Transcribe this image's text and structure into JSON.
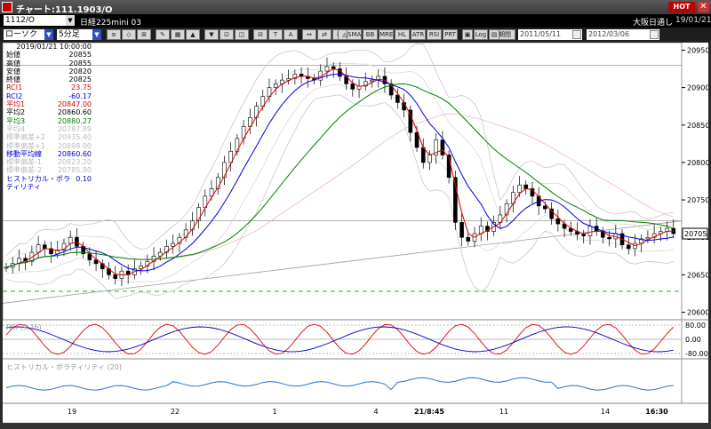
{
  "window": {
    "title": "チャート:111.1903/O",
    "hot_label": "HOT",
    "close_glyph": "✕"
  },
  "symbol_bar": {
    "code": "1112/O",
    "name": "日経225mini 03",
    "market": "大阪日通し",
    "date": "19/01/21"
  },
  "controls": {
    "chart_type": "ローソク",
    "interval": "5分足",
    "buttons": [
      "≡",
      "◇",
      "⊞",
      "✎",
      "▦",
      "▲",
      "▼",
      "⊡",
      "◫",
      "⊟",
      "T",
      "A",
      "↔",
      "⇄",
      "⊠",
      "◨",
      "◧",
      "◩",
      "▤",
      "◭",
      "▨",
      "▩",
      "▥",
      "◬"
    ],
    "indicator_buttons": [
      "SMA",
      "BB",
      "MRE",
      "HL",
      "ATR",
      "RSI",
      "PRT"
    ],
    "extra_buttons": [
      "▣",
      "Log",
      "▤"
    ],
    "period_label": "期間",
    "date_from": "2011/05/11",
    "date_to": "2012/03/06"
  },
  "legend": {
    "datetime": "2019/01/21 10:00:00",
    "rows": [
      {
        "label": "始値",
        "value": "20855",
        "style": ""
      },
      {
        "label": "高値",
        "value": "20855",
        "style": ""
      },
      {
        "label": "安値",
        "value": "20820",
        "style": ""
      },
      {
        "label": "終値",
        "value": "20825",
        "style": ""
      },
      {
        "label": "RCI1",
        "value": "23.75",
        "style": "red"
      },
      {
        "label": "RCI2",
        "value": "-60.17",
        "style": "blue"
      },
      {
        "label": "平均1",
        "value": "20847.00",
        "style": "red"
      },
      {
        "label": "平均2",
        "value": "20860.60",
        "style": ""
      },
      {
        "label": "平均3",
        "value": "20880.27",
        "style": "green"
      },
      {
        "label": "平均4",
        "value": "20787.89",
        "style": "faint"
      },
      {
        "label": "標準偏差+2",
        "value": "20935.40",
        "style": "faint"
      },
      {
        "label": "標準偏差+1",
        "value": "20898.00",
        "style": "faint"
      },
      {
        "label": "移動平均線",
        "value": "20860.60",
        "style": "blue"
      },
      {
        "label": "標準偏差-1",
        "value": "20823.20",
        "style": "faint"
      },
      {
        "label": "標準偏差-2",
        "value": "20785.80",
        "style": "faint"
      },
      {
        "label": "ヒストリカル・ボラティリティ",
        "value": "0.10",
        "style": "blue"
      }
    ]
  },
  "chart_data": {
    "type": "candlestick",
    "y_ticks": [
      "20950",
      "20900",
      "20850",
      "20800",
      "20750",
      "20700",
      "20650",
      "20600"
    ],
    "current_price": "20705",
    "x_ticks": [
      "19",
      "22",
      "1",
      "4",
      "21/8:45",
      "11",
      "14",
      "16:30"
    ],
    "rci_label": "RCI (9,26)",
    "rci_ticks": [
      "80.00",
      "0.00",
      "-80.00"
    ],
    "hv_label": "ヒストリカル・ボラティリティ (20)",
    "close_series": [
      20660,
      20665,
      20672,
      20668,
      20680,
      20690,
      20685,
      20678,
      20683,
      20692,
      20700,
      20688,
      20678,
      20670,
      20665,
      20658,
      20650,
      20645,
      20655,
      20650,
      20658,
      20662,
      20668,
      20675,
      20680,
      20688,
      20692,
      20700,
      20710,
      20722,
      20740,
      20755,
      20765,
      20780,
      20800,
      20815,
      20832,
      20848,
      20860,
      20875,
      20888,
      20900,
      20905,
      20910,
      20912,
      20918,
      20915,
      20912,
      20910,
      20922,
      20928,
      20925,
      20915,
      20905,
      20898,
      20902,
      20908,
      20910,
      20915,
      20905,
      20890,
      20880,
      20870,
      20840,
      20820,
      20800,
      20810,
      20830,
      20810,
      20780,
      20720,
      20700,
      20695,
      20705,
      20715,
      20708,
      20720,
      20730,
      20745,
      20760,
      20770,
      20765,
      20755,
      20742,
      20738,
      20725,
      20718,
      20712,
      20708,
      20704,
      20702,
      20715,
      20708,
      20700,
      20698,
      20705,
      20690,
      20685,
      20692,
      20698,
      20700,
      20705,
      20708,
      20712,
      20705
    ]
  }
}
